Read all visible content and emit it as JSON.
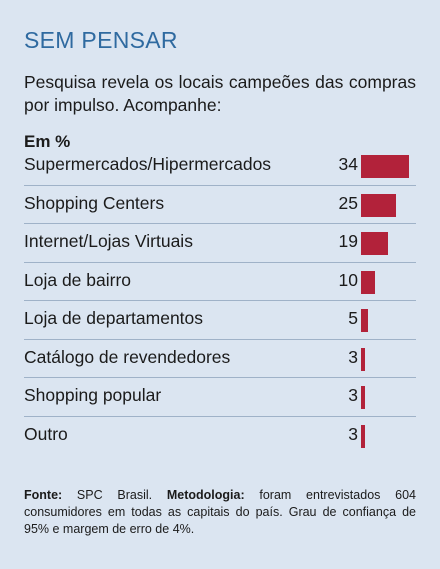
{
  "title": "SEM PENSAR",
  "subtitle": "Pesquisa revela os locais campeões das compras por impulso. Acompanhe:",
  "unit_label": "Em %",
  "chart_data": {
    "type": "bar",
    "orientation": "horizontal",
    "categories": [
      "Supermercados/Hipermercados",
      "Shopping Centers",
      "Internet/Lojas Virtuais",
      "Loja de bairro",
      "Loja de departamentos",
      "Catálogo de revendedores",
      "Shopping popular",
      "Outro"
    ],
    "values": [
      34,
      25,
      19,
      10,
      5,
      3,
      3,
      3
    ],
    "bar_color": "#b2223a"
  },
  "footer": {
    "source_label": "Fonte:",
    "source_text": " SPC Brasil. ",
    "method_label": "Metodologia:",
    "method_text": " foram entrevistados 604 consumidores em todas   as capitais do país. Grau de confiança de 95% e margem de erro de 4%."
  }
}
